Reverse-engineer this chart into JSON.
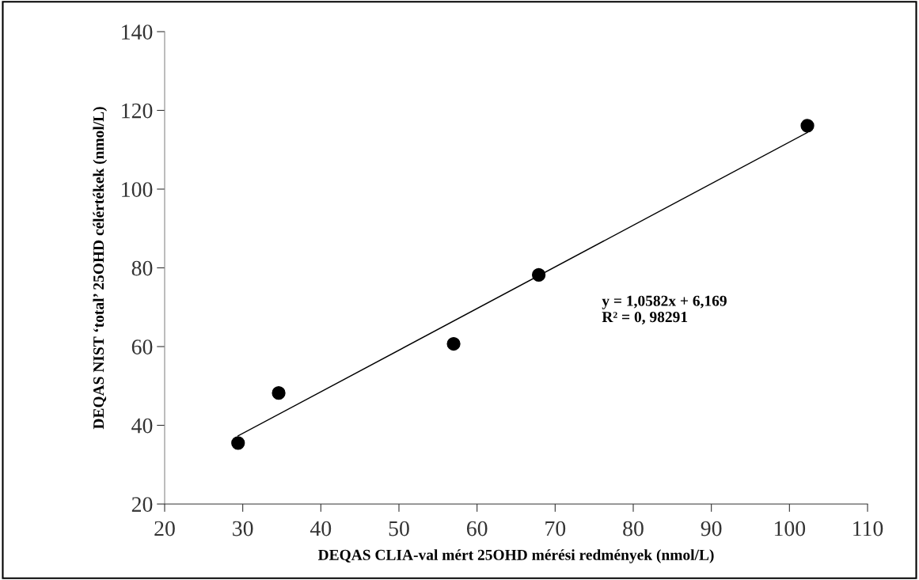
{
  "chart_data": {
    "type": "scatter",
    "xlabel": "DEQAS CLIA-val mért 25OHD mérési redmények (nmol/L)",
    "ylabel": "DEQAS NIST ‘total’ 25OHD célértékek (nmol/L)",
    "series": [
      {
        "color": "#000000",
        "marker": "circle",
        "x": [
          29.4,
          34.6,
          57.0,
          67.9,
          102.3
        ],
        "values": [
          35.5,
          48.2,
          60.7,
          78.2,
          116.1
        ]
      },
      {
        "type": "line",
        "color": "#000000",
        "marker": "none",
        "line_style": "solid",
        "x": [
          29.4,
          102.3
        ],
        "values": [
          37.3,
          114.4
        ]
      }
    ],
    "annotations": [
      "y = 1,0582x + 6,169\nR² = 0, 98291"
    ],
    "xlim": [
      20,
      110
    ],
    "xticks": [
      20,
      30,
      40,
      50,
      60,
      70,
      80,
      90,
      100,
      110
    ],
    "ylim": [
      20,
      140
    ],
    "yticks": [
      20,
      40,
      60,
      80,
      100,
      120,
      140
    ],
    "grid": false,
    "legend": false
  }
}
